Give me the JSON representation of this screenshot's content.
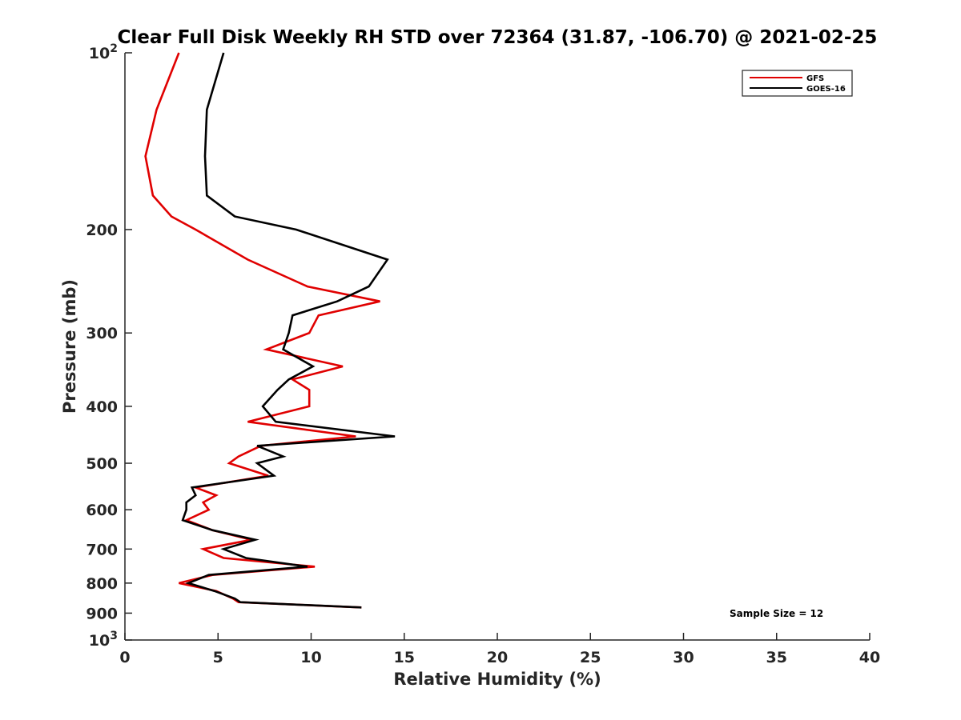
{
  "chart_data": {
    "type": "line",
    "title": "Clear Full Disk Weekly RH STD over 72364 (31.87, -106.70) @ 2021-02-25",
    "xlabel": "Relative Humidity (%)",
    "ylabel": "Pressure (mb)",
    "xlim": [
      0,
      40
    ],
    "ylim": [
      100,
      1000
    ],
    "yscale": "log",
    "y_reversed": true,
    "grid": false,
    "legend_position": "top-right",
    "x_ticks": [
      "0",
      "5",
      "10",
      "15",
      "20",
      "25",
      "30",
      "35",
      "40"
    ],
    "y_ticks": [
      {
        "value": 100,
        "base": "10",
        "exp": "2"
      },
      {
        "value": 200,
        "label": "200"
      },
      {
        "value": 300,
        "label": "300"
      },
      {
        "value": 400,
        "label": "400"
      },
      {
        "value": 500,
        "label": "500"
      },
      {
        "value": 600,
        "label": "600"
      },
      {
        "value": 700,
        "label": "700"
      },
      {
        "value": 800,
        "label": "800"
      },
      {
        "value": 900,
        "label": "900"
      },
      {
        "value": 1000,
        "base": "10",
        "exp": "3"
      }
    ],
    "annotation": "Sample Size = 12",
    "series": [
      {
        "name": "GFS",
        "color": "#e00000",
        "points": [
          [
            2.9,
            100
          ],
          [
            1.7,
            125
          ],
          [
            1.1,
            150
          ],
          [
            1.5,
            175
          ],
          [
            2.5,
            190
          ],
          [
            3.8,
            200
          ],
          [
            6.6,
            225
          ],
          [
            9.8,
            250
          ],
          [
            13.7,
            265
          ],
          [
            10.4,
            280
          ],
          [
            9.9,
            300
          ],
          [
            7.6,
            320
          ],
          [
            11.7,
            342
          ],
          [
            9.0,
            360
          ],
          [
            9.9,
            375
          ],
          [
            9.9,
            400
          ],
          [
            6.6,
            425
          ],
          [
            12.4,
            450
          ],
          [
            7.3,
            467
          ],
          [
            6.1,
            487
          ],
          [
            5.6,
            500
          ],
          [
            7.7,
            525
          ],
          [
            3.8,
            550
          ],
          [
            4.9,
            567
          ],
          [
            4.2,
            583
          ],
          [
            4.5,
            600
          ],
          [
            3.3,
            625
          ],
          [
            4.7,
            650
          ],
          [
            6.8,
            675
          ],
          [
            4.2,
            700
          ],
          [
            5.3,
            725
          ],
          [
            10.2,
            750
          ],
          [
            4.7,
            775
          ],
          [
            2.9,
            800
          ],
          [
            4.9,
            825
          ],
          [
            5.8,
            850
          ],
          [
            6.1,
            862
          ],
          [
            12.7,
            880
          ]
        ]
      },
      {
        "name": "GOES-16",
        "color": "#000000",
        "points": [
          [
            5.3,
            100
          ],
          [
            4.4,
            125
          ],
          [
            4.3,
            150
          ],
          [
            4.4,
            175
          ],
          [
            5.9,
            190
          ],
          [
            9.2,
            200
          ],
          [
            14.1,
            225
          ],
          [
            13.1,
            250
          ],
          [
            11.4,
            265
          ],
          [
            9.0,
            280
          ],
          [
            8.8,
            300
          ],
          [
            8.5,
            320
          ],
          [
            10.1,
            342
          ],
          [
            8.8,
            360
          ],
          [
            8.2,
            375
          ],
          [
            7.4,
            400
          ],
          [
            8.1,
            425
          ],
          [
            14.5,
            450
          ],
          [
            7.1,
            467
          ],
          [
            8.5,
            487
          ],
          [
            7.1,
            500
          ],
          [
            8.0,
            525
          ],
          [
            3.6,
            550
          ],
          [
            3.8,
            567
          ],
          [
            3.3,
            583
          ],
          [
            3.3,
            600
          ],
          [
            3.1,
            625
          ],
          [
            4.7,
            650
          ],
          [
            7.0,
            675
          ],
          [
            5.3,
            700
          ],
          [
            6.5,
            725
          ],
          [
            9.8,
            750
          ],
          [
            4.5,
            775
          ],
          [
            3.4,
            800
          ],
          [
            4.8,
            825
          ],
          [
            5.9,
            850
          ],
          [
            6.2,
            862
          ],
          [
            12.7,
            880
          ]
        ]
      }
    ]
  }
}
